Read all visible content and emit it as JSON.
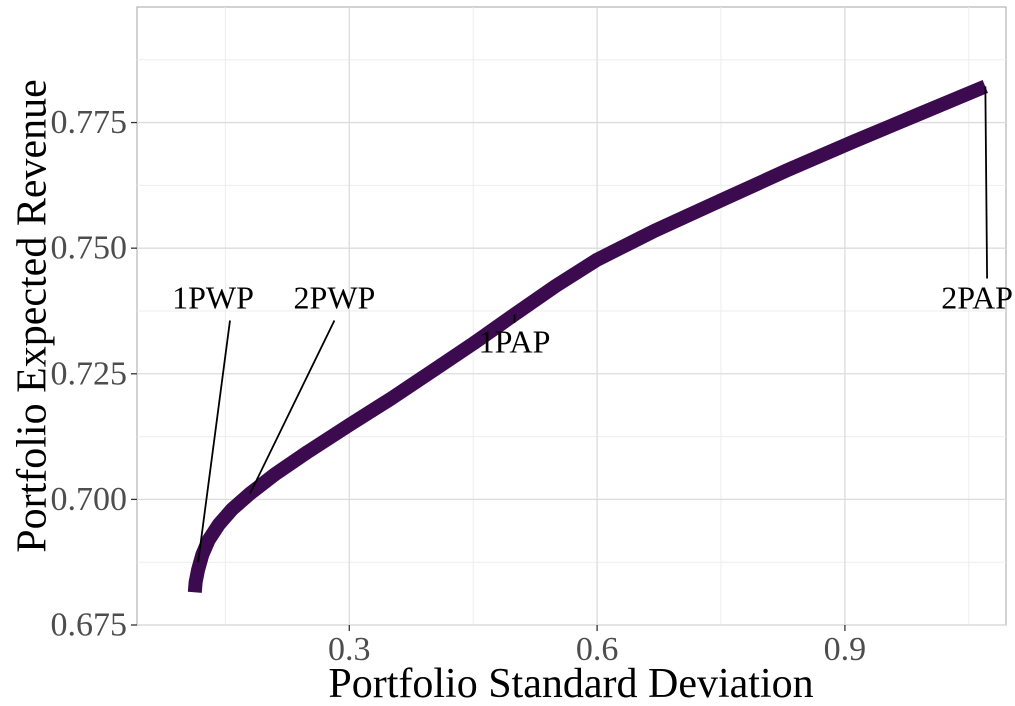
{
  "chart_data": {
    "type": "line",
    "title": "",
    "xlabel": "Portfolio Standard Deviation",
    "ylabel": "Portfolio Expected Revenue",
    "xlim": [
      0.043,
      1.095
    ],
    "ylim": [
      0.675,
      0.798
    ],
    "x_ticks": [
      0.3,
      0.6,
      0.9
    ],
    "x_tick_labels": [
      "0.3",
      "0.6",
      "0.9"
    ],
    "x_minor_ticks": [
      0.15,
      0.45,
      0.75,
      1.05
    ],
    "y_ticks": [
      0.675,
      0.7,
      0.725,
      0.75,
      0.775
    ],
    "y_tick_labels": [
      "0.675",
      "0.700",
      "0.725",
      "0.750",
      "0.775"
    ],
    "y_minor_ticks": [
      0.6875,
      0.7125,
      0.7375,
      0.7625,
      0.7875
    ],
    "grid": true,
    "legend": "none",
    "line_color": "#3c0a4e",
    "series": [
      {
        "x": [
          0.113,
          0.114,
          0.117,
          0.122,
          0.13,
          0.142,
          0.158,
          0.18,
          0.21,
          0.25,
          0.3,
          0.35,
          0.4,
          0.45,
          0.5,
          0.55,
          0.6,
          0.67,
          0.75,
          0.83,
          0.91,
          0.99,
          1.07
        ],
        "y": [
          0.6815,
          0.6835,
          0.686,
          0.689,
          0.692,
          0.695,
          0.698,
          0.7012,
          0.705,
          0.7095,
          0.7148,
          0.72,
          0.7255,
          0.731,
          0.7368,
          0.7425,
          0.7477,
          0.7535,
          0.7595,
          0.7655,
          0.7712,
          0.7767,
          0.7822
        ]
      }
    ],
    "annotations": [
      {
        "label": "1PWP",
        "x": 0.117,
        "y": 0.6875,
        "label_x": 0.135,
        "label_y": 0.738
      },
      {
        "label": "2PWP",
        "x": 0.18,
        "y": 0.7012,
        "label_x": 0.282,
        "label_y": 0.738
      },
      {
        "label": "1PAP",
        "x": 0.5,
        "y": 0.7368,
        "label_x": 0.5,
        "label_y": 0.7292
      },
      {
        "label": "2PAP",
        "x": 1.07,
        "y": 0.7822,
        "label_x": 1.06,
        "label_y": 0.738
      }
    ]
  }
}
